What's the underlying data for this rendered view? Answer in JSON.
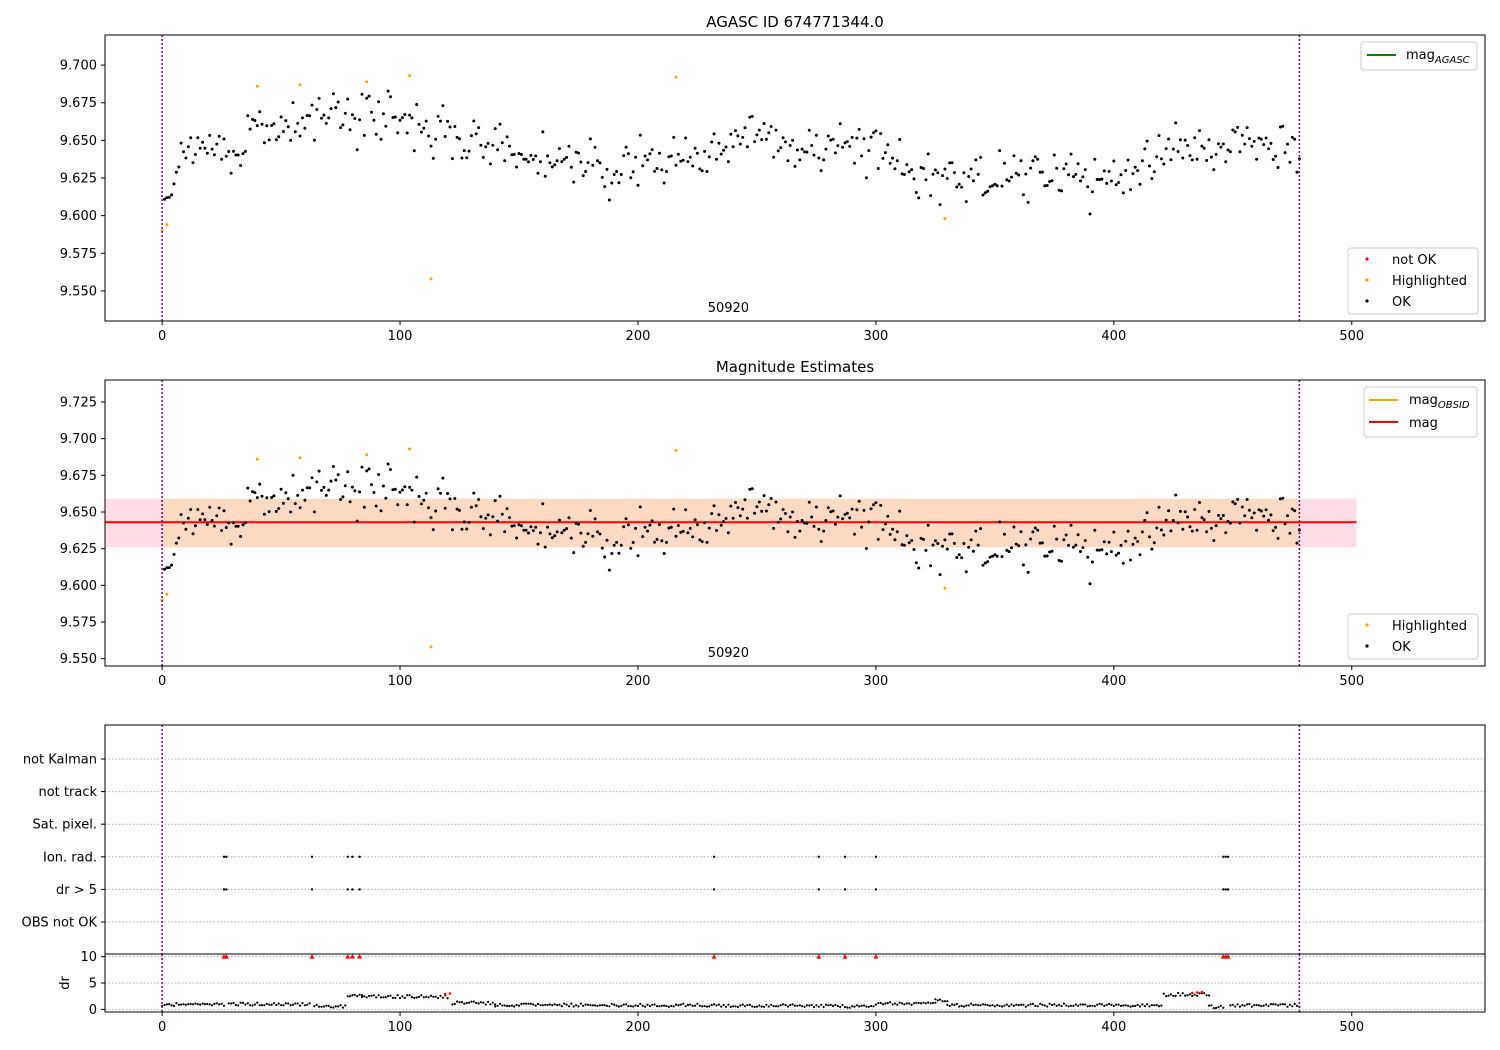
{
  "chart_data": [
    {
      "type": "scatter",
      "title": "AGASC ID 674771344.0",
      "xlim": [
        -24,
        556
      ],
      "ylim": [
        9.53,
        9.72
      ],
      "x_ticks": [
        0,
        100,
        200,
        300,
        400,
        500
      ],
      "y_ticks": [
        9.55,
        9.575,
        9.6,
        9.625,
        9.65,
        9.675,
        9.7
      ],
      "obsid_label": "50920",
      "obsid_label_x": 238,
      "obsid_boundaries": [
        0,
        478
      ],
      "legend_lines": [
        {
          "label": "mag",
          "sub": "AGASC",
          "color": "#008000"
        }
      ],
      "legend_points": [
        {
          "label": "not OK",
          "color": "#ff0000"
        },
        {
          "label": "Highlighted",
          "color": "#ffa500"
        },
        {
          "label": "OK",
          "color": "#000000"
        }
      ],
      "highlighted_points": [
        [
          0,
          9.59
        ],
        [
          2,
          9.594
        ],
        [
          40,
          9.686
        ],
        [
          58,
          9.687
        ],
        [
          86,
          9.689
        ],
        [
          104,
          9.693
        ],
        [
          113,
          9.558
        ],
        [
          216,
          9.692
        ],
        [
          329,
          9.598
        ]
      ]
    },
    {
      "type": "scatter",
      "title": "Magnitude Estimates",
      "xlim": [
        -24,
        556
      ],
      "ylim": [
        9.545,
        9.74
      ],
      "x_ticks": [
        0,
        100,
        200,
        300,
        400,
        500
      ],
      "y_ticks": [
        9.55,
        9.575,
        9.6,
        9.625,
        9.65,
        9.675,
        9.7,
        9.725
      ],
      "obsid_label": "50920",
      "obsid_label_x": 238,
      "obsid_boundaries": [
        0,
        478
      ],
      "mean_mag": 9.643,
      "band_outer": [
        9.626,
        9.659
      ],
      "band_x": [
        -24,
        502
      ],
      "legend_lines": [
        {
          "label": "mag",
          "sub": "OBSID",
          "color": "#ffa500"
        },
        {
          "label": "mag",
          "sub": "",
          "color": "#ff0000"
        }
      ],
      "legend_points": [
        {
          "label": "Highlighted",
          "color": "#ffa500"
        },
        {
          "label": "OK",
          "color": "#000000"
        }
      ],
      "highlighted_points": [
        [
          0,
          9.59
        ],
        [
          2,
          9.594
        ],
        [
          40,
          9.686
        ],
        [
          58,
          9.687
        ],
        [
          86,
          9.689
        ],
        [
          104,
          9.693
        ],
        [
          113,
          9.558
        ],
        [
          216,
          9.692
        ],
        [
          329,
          9.598
        ]
      ]
    },
    {
      "type": "scatter",
      "title": "",
      "xlim": [
        -24,
        556
      ],
      "flag_labels": [
        "not Kalman",
        "not track",
        "Sat. pixel.",
        "Ion. rad.",
        "dr > 5",
        "OBS not OK"
      ],
      "flag_points": {
        "Ion. rad.": [
          26,
          27,
          63,
          78,
          80,
          83,
          232,
          276,
          287,
          300,
          446,
          447,
          448
        ],
        "dr > 5": [
          26,
          27,
          63,
          78,
          80,
          83,
          232,
          276,
          287,
          300,
          446,
          447,
          448
        ]
      },
      "obsid_boundaries": [
        0,
        478
      ]
    },
    {
      "type": "scatter",
      "title": "",
      "xlim": [
        -24,
        556
      ],
      "ylim": [
        -0.5,
        10.5
      ],
      "x_ticks": [
        0,
        100,
        200,
        300,
        400,
        500
      ],
      "y_ticks": [
        0,
        5,
        10
      ],
      "ylabel": "dr",
      "dr_capped_red": [
        26,
        27,
        63,
        78,
        80,
        83,
        232,
        276,
        287,
        300,
        446,
        447,
        448
      ],
      "obsid_boundaries": [
        0,
        478
      ]
    }
  ],
  "colors": {
    "ok": "#000000",
    "highlighted": "#ffa500",
    "not_ok": "#ff0000",
    "boundary": "#800080",
    "band_outer": "#ffdde6",
    "band_inner": "#fed9c3",
    "mean_line": "#ff0000",
    "grid": "#b0b0b0"
  }
}
